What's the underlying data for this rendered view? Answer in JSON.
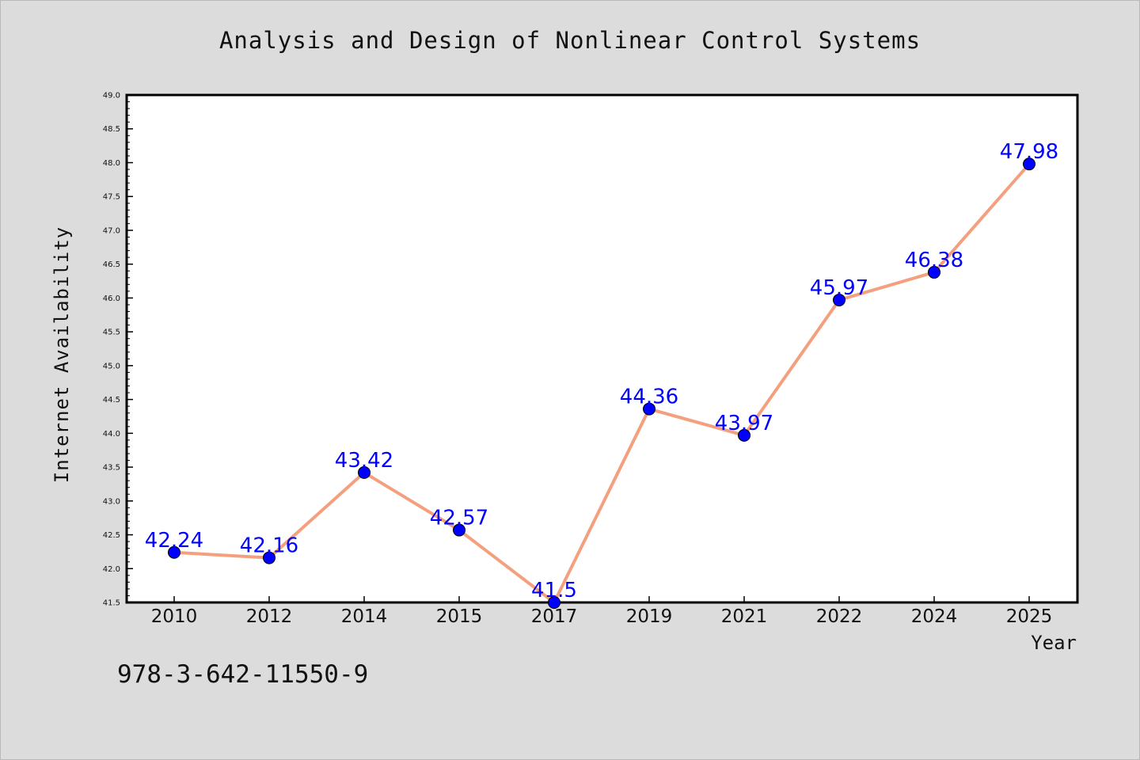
{
  "chart_data": {
    "type": "line",
    "title": "Analysis and Design of Nonlinear Control Systems",
    "xlabel": "Year",
    "ylabel": "Internet Availability",
    "categories": [
      "2010",
      "2012",
      "2014",
      "2015",
      "2017",
      "2019",
      "2021",
      "2022",
      "2024",
      "2025"
    ],
    "values": [
      42.24,
      42.16,
      43.42,
      42.57,
      41.5,
      44.36,
      43.97,
      45.97,
      46.38,
      47.98
    ],
    "data_labels": [
      "42.24",
      "42.16",
      "43.42",
      "42.57",
      "41.5",
      "44.36",
      "43.97",
      "45.97",
      "46.38",
      "47.98"
    ],
    "ylim": [
      41.5,
      49.0
    ],
    "yticks": [
      "41.5",
      "42.0",
      "42.5",
      "43.0",
      "43.5",
      "44.0",
      "44.5",
      "45.0",
      "45.5",
      "46.0",
      "46.5",
      "47.0",
      "47.5",
      "48.0",
      "48.5",
      "49.0"
    ],
    "grid": false,
    "line_color": "#f4a07e",
    "marker_color": "#0000ff",
    "label_color": "#0000ff"
  },
  "footer": {
    "isbn": "978-3-642-11550-9"
  }
}
